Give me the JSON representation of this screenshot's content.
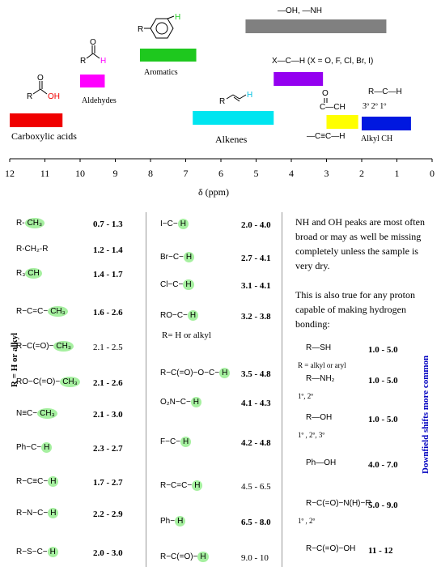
{
  "chart_data": {
    "type": "range-bar",
    "xlabel": "δ (ppm)",
    "x_range": [
      12,
      0
    ],
    "x_ticks": [
      "12",
      "11",
      "10",
      "9",
      "8",
      "7",
      "6",
      "5",
      "4",
      "3",
      "2",
      "1",
      "0"
    ],
    "bars": [
      {
        "label": "Carboxylic acids",
        "from": 12.0,
        "to": 10.5,
        "color": "#f00000"
      },
      {
        "label": "Aldehydes",
        "from": 10.0,
        "to": 9.3,
        "color": "#ff00ff"
      },
      {
        "label": "Aromatics",
        "from": 8.3,
        "to": 6.7,
        "color": "#1ec81e"
      },
      {
        "label": "–OH,  –NH",
        "from": 5.3,
        "to": 1.3,
        "color": "#808080"
      },
      {
        "label": "Alkenes",
        "from": 6.8,
        "to": 4.5,
        "color": "#00e5f0"
      },
      {
        "label": "X–C–H  (X = O, F, Cl, Br, I)",
        "from": 4.5,
        "to": 3.1,
        "color": "#9400f0"
      },
      {
        "label": "C=O–C–H",
        "from": 3.0,
        "to": 2.1,
        "color": "#ffff00"
      },
      {
        "label": "Alkyl CH",
        "from": 2.0,
        "to": 0.6,
        "color": "#0018e0"
      }
    ]
  },
  "labels": {
    "carboxylic": "Carboxylic acids",
    "aldehydes": "Aldehydes",
    "aromatics": "Aromatics",
    "alkenes": "Alkenes",
    "alkyl": "Alkyl CH",
    "ohnh": "—OH,    —NH",
    "xch": "X—C—H  (X = O, F, Cl, Br, I)",
    "rch": "R—C—H",
    "degrees": "3º  2º   1º",
    "alkyne": "—C≡C—H",
    "axis_label": "δ (ppm)"
  },
  "col1": [
    {
      "mol": "R-CH₃",
      "range": "0.7 - 1.3",
      "bold": true
    },
    {
      "mol": "R-CH₂-R",
      "range": "1.2 - 1.4",
      "bold": true
    },
    {
      "mol": "R₃CH",
      "range": "1.4 - 1.7",
      "bold": true
    },
    {
      "mol": "R−C=C−CH₃",
      "range": "1.6 - 2.6",
      "bold": true
    },
    {
      "mol": "R−C(=O)−CH₃",
      "range": "2.1 - 2.5",
      "bold": false
    },
    {
      "mol": "RO−C(=O)−CH₃",
      "range": "2.1 - 2.6",
      "bold": true
    },
    {
      "mol": "N≡C−CH₃",
      "range": "2.1 - 3.0",
      "bold": true
    },
    {
      "mol": "Ph−C−H",
      "range": "2.3 - 2.7",
      "bold": true
    },
    {
      "mol": "R−C≡C−H",
      "range": "1.7 - 2.7",
      "bold": true
    },
    {
      "mol": "R−N−C−H",
      "range": "2.2 - 2.9",
      "bold": true
    },
    {
      "mol": "R−S−C−H",
      "range": "2.0 - 3.0",
      "bold": true
    }
  ],
  "col1_side": "R = H or alkyl",
  "col2": [
    {
      "mol": "I−C−H",
      "range": "2.0 - 4.0",
      "bold": true
    },
    {
      "mol": "Br−C−H",
      "range": "2.7 - 4.1",
      "bold": true
    },
    {
      "mol": "Cl−C−H",
      "range": "3.1 - 4.1",
      "bold": true
    },
    {
      "mol": "RO−C−H",
      "range": "3.2 - 3.8",
      "bold": true
    },
    {
      "mol": "R−C(=O)−O−C−H",
      "range": "3.5 - 4.8",
      "bold": true
    },
    {
      "mol": "O₂N−C−H",
      "range": "4.1 - 4.3",
      "bold": true
    },
    {
      "mol": "F−C−H",
      "range": "4.2 - 4.8",
      "bold": true
    },
    {
      "mol": "R−C=C−H",
      "range": "4.5 - 6.5",
      "bold": false
    },
    {
      "mol": "Ph−H",
      "range": "6.5 - 8.0",
      "bold": true
    },
    {
      "mol": "R−C(=O)−H",
      "range": "9.0 - 10",
      "bold": false
    }
  ],
  "col2_note": "R= H or alkyl",
  "note1": "NH and OH peaks are most often broad or may as well be missing completely unless the sample is very dry.",
  "note2": "This is also true for any proton capable of making hydrogen bonding:",
  "col3": [
    {
      "mol": "R—SH",
      "sub": "R = alkyl or aryl",
      "range": "1.0 - 5.0"
    },
    {
      "mol": "R—NH₂",
      "sub": "1º, 2º",
      "range": "1.0 - 5.0"
    },
    {
      "mol": "R—OH",
      "sub": "1º , 2º, 3º",
      "range": "1.0 - 5.0"
    },
    {
      "mol": "Ph—OH",
      "sub": "",
      "range": "4.0 - 7.0"
    },
    {
      "mol": "R−C(=O)−N(H)−R",
      "sub": "1º , 2º",
      "range": "5.0 - 9.0"
    },
    {
      "mol": "R−C(=O)−OH",
      "sub": "",
      "range": "11 - 12"
    }
  ],
  "downfield": "Downfield shifts more common"
}
